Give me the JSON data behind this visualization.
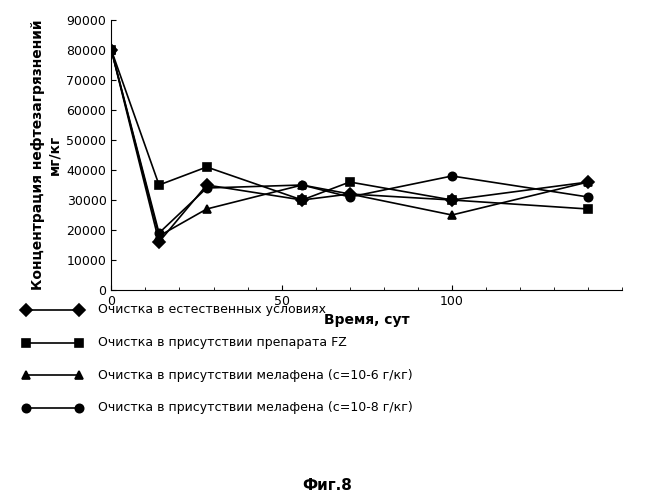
{
  "title": "",
  "xlabel": "Время, сут",
  "ylabel_line1": "Концентрация нефтезагрязнений",
  "ylabel_line2": "мг/кг",
  "caption": "Фиг.8",
  "xlim": [
    0,
    150
  ],
  "ylim": [
    0,
    90000
  ],
  "yticks": [
    0,
    10000,
    20000,
    30000,
    40000,
    50000,
    60000,
    70000,
    80000,
    90000
  ],
  "xticks": [
    0,
    50,
    100
  ],
  "series": [
    {
      "label": "Очистка в естественных условиях",
      "x": [
        0,
        14,
        28,
        56,
        70,
        100,
        140
      ],
      "y": [
        80000,
        16000,
        35000,
        30000,
        32000,
        30000,
        36000
      ],
      "marker": "D",
      "markerfilled": true,
      "color": "#000000",
      "markersize": 6,
      "linewidth": 1.2
    },
    {
      "label": "Очистка в присутствии препарата FZ",
      "x": [
        0,
        14,
        28,
        56,
        70,
        100,
        140
      ],
      "y": [
        80000,
        35000,
        41000,
        30000,
        36000,
        30000,
        27000
      ],
      "marker": "s",
      "markerfilled": true,
      "color": "#000000",
      "markersize": 6,
      "linewidth": 1.2
    },
    {
      "label": "Очистка в присутствии мелафена (с=10-6 г/кг)",
      "x": [
        0,
        14,
        28,
        56,
        70,
        100,
        140
      ],
      "y": [
        80000,
        18000,
        27000,
        35000,
        32000,
        25000,
        36000
      ],
      "marker": "^",
      "markerfilled": true,
      "color": "#000000",
      "markersize": 6,
      "linewidth": 1.2
    },
    {
      "label": "Очистка в присутствии мелафена (с=10-8 г/кг)",
      "x": [
        0,
        14,
        28,
        56,
        70,
        100,
        140
      ],
      "y": [
        80000,
        19000,
        34000,
        35000,
        31000,
        38000,
        31000
      ],
      "marker": "o",
      "markerfilled": true,
      "color": "#000000",
      "markersize": 6,
      "linewidth": 1.2
    }
  ],
  "background_color": "#ffffff",
  "font_size": 10,
  "tick_fontsize": 9,
  "caption_fontsize": 11
}
